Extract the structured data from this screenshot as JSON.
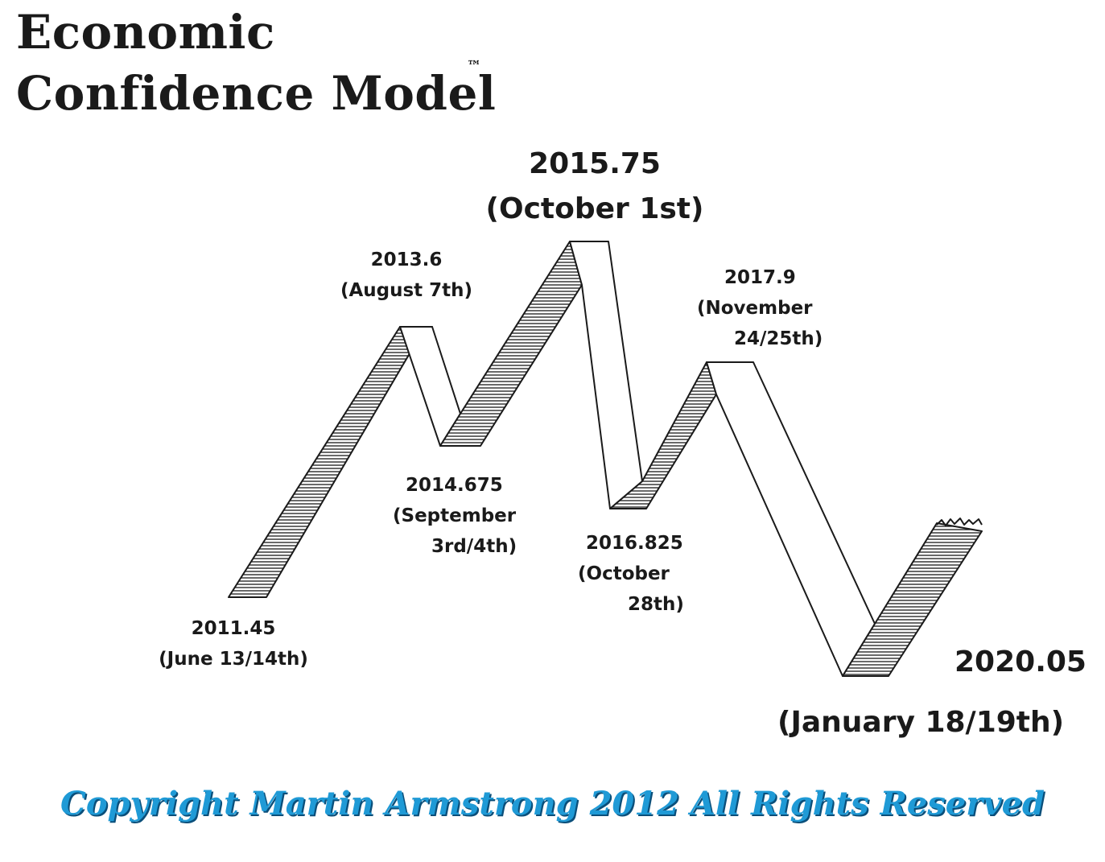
{
  "title": {
    "line1": "Economic",
    "line2": "Confidence Model",
    "trademark": "™"
  },
  "turning_points": [
    {
      "id": "p2011",
      "date": "2011.45",
      "note": "(June 13/14th)",
      "kind": "low"
    },
    {
      "id": "p2013",
      "date": "2013.6",
      "note": "(August 7th)",
      "kind": "high"
    },
    {
      "id": "p2014",
      "date": "2014.675",
      "note_1": "(September",
      "note_2": "3rd/4th)",
      "kind": "low"
    },
    {
      "id": "p2015",
      "date": "2015.75",
      "note": "(October 1st)",
      "kind": "major-high"
    },
    {
      "id": "p2016",
      "date": "2016.825",
      "note_1": "(October",
      "note_2": "28th)",
      "kind": "low"
    },
    {
      "id": "p2017",
      "date": "2017.9",
      "note_1": "(November",
      "note_2": "24/25th)",
      "kind": "high"
    },
    {
      "id": "p2020",
      "date": "2020.05",
      "note": "(January 18/19th)",
      "kind": "major-low"
    }
  ],
  "copyright": "Copyright Martin Armstrong 2012 All Rights Reserved",
  "colors": {
    "ink": "#1a1a1a",
    "copyright_text": "#1f9ad6",
    "copyright_shadow": "#0b4f7a",
    "background": "#ffffff"
  }
}
